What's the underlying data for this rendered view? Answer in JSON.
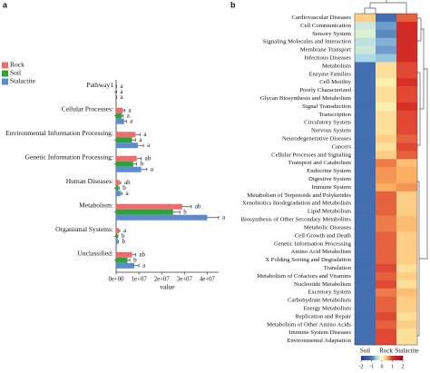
{
  "chart_data": [
    {
      "type": "bar",
      "orientation": "horizontal",
      "panel_label": "a",
      "categories": [
        "Pathway1",
        "Cellular Processes:",
        "Environmental Information Processing:",
        "Genetic Information Processing:",
        "Human Diseases:",
        "Metabolism:",
        "Organismal Systems:",
        "Unclassified:"
      ],
      "series": [
        {
          "name": "Rock",
          "color": "#f26b6b",
          "values": [
            100000,
            3000000,
            8500000,
            9000000,
            1500000,
            29000000,
            1200000,
            7000000
          ],
          "errors": [
            100000,
            800000,
            2000000,
            2000000,
            500000,
            4000000,
            400000,
            1500000
          ],
          "significance_letters": [
            "a",
            "a",
            "a",
            "ab",
            "ab",
            "ab",
            "a",
            "ab"
          ]
        },
        {
          "name": "Soil",
          "color": "#2ca33a",
          "values": [
            80000,
            2500000,
            7000000,
            7500000,
            1000000,
            25000000,
            600000,
            5000000
          ],
          "errors": [
            80000,
            600000,
            1500000,
            1500000,
            300000,
            3000000,
            200000,
            1000000
          ],
          "significance_letters": [
            "a",
            "a",
            "a",
            "b",
            "b",
            "b",
            "b",
            "b"
          ]
        },
        {
          "name": "Stalactite",
          "color": "#5b8bd0",
          "values": [
            120000,
            3500000,
            9500000,
            11000000,
            2000000,
            40000000,
            700000,
            8000000
          ],
          "errors": [
            120000,
            1000000,
            2500000,
            2500000,
            600000,
            5000000,
            300000,
            2000000
          ],
          "significance_letters": [
            "a",
            "a",
            "a",
            "a",
            "a",
            "a",
            "b",
            "a"
          ]
        }
      ],
      "xlabel": "value",
      "xlim": [
        0,
        45000000
      ],
      "xticks": [
        {
          "value": 0,
          "label": "0e+00"
        },
        {
          "value": 10000000,
          "label": "1e+07"
        },
        {
          "value": 20000000,
          "label": "2e+07"
        },
        {
          "value": 30000000,
          "label": "3e+07"
        },
        {
          "value": 40000000,
          "label": "4e+07"
        }
      ],
      "legend": "top-left"
    },
    {
      "type": "heatmap",
      "panel_label": "b",
      "columns": [
        "Soil",
        "Rock",
        "Stalactite"
      ],
      "rows": [
        "Cardiovascular Diseases",
        "Cell Communication",
        "Sensory System",
        "Signaling Molecules and Interaction",
        "Membrane Transport",
        "Infectious Diseases",
        "Metabolism",
        "Enzyme Families",
        "Cell Motility",
        "Poorly Characterized",
        "Glycan Biosynthesis and Metabolism",
        "Signal Transduction",
        "Transcription",
        "Circulatory System",
        "Nervous System",
        "Neurodegenerative Diseases",
        "Cancers",
        "Cellular Processes and Signaling",
        "Transport and Catabolism",
        "Endocrine System",
        "Digestive System",
        "Immune System",
        "Metabolism of Terpenoids and Polyketides",
        "Xenobiotics Biodegradation and Metabolism",
        "Lipid Metabolism",
        "Biosynthesis of Other Secondary Metabolites",
        "Metabolic Diseases",
        "Cell Growth and Death",
        "Genetic Information Processing",
        "Amino Acid Metabolism",
        "X Folding Sorting and Degradation",
        "Translation",
        "Metabolism of Cofactors and Vitamins",
        "Nucleotide Metabolism",
        "Excretory System",
        "Carbohydrate Metabolism",
        "Energy Metabolism",
        "Replication and Repair",
        "Metabolism of Other Amino Acids",
        "Immune System Diseases",
        "Environmental Adaptation"
      ],
      "values": [
        [
          0.3,
          -1.1,
          0.8
        ],
        [
          -0.3,
          -0.8,
          1.1
        ],
        [
          -0.2,
          -0.9,
          1.1
        ],
        [
          -0.4,
          -0.7,
          1.1
        ],
        [
          -0.3,
          -0.8,
          1.1
        ],
        [
          -0.5,
          -0.6,
          1.1
        ],
        [
          -1.1,
          0.2,
          0.9
        ],
        [
          -1.1,
          0.2,
          0.9
        ],
        [
          -1.1,
          0.1,
          1.0
        ],
        [
          -1.1,
          0.2,
          0.9
        ],
        [
          -1.1,
          0.2,
          0.9
        ],
        [
          -1.1,
          0.1,
          1.0
        ],
        [
          -1.1,
          0.2,
          0.9
        ],
        [
          -1.1,
          0.2,
          0.9
        ],
        [
          -1.1,
          0.2,
          0.9
        ],
        [
          -1.1,
          0.3,
          0.8
        ],
        [
          -1.1,
          0.2,
          0.9
        ],
        [
          -1.1,
          0.3,
          0.8
        ],
        [
          -1.1,
          0.7,
          0.4
        ],
        [
          -1.1,
          0.6,
          0.5
        ],
        [
          -1.1,
          0.6,
          0.5
        ],
        [
          -1.1,
          0.5,
          0.6
        ],
        [
          -1.1,
          0.8,
          0.3
        ],
        [
          -1.1,
          0.8,
          0.3
        ],
        [
          -1.1,
          0.8,
          0.3
        ],
        [
          -1.1,
          0.7,
          0.4
        ],
        [
          -1.1,
          0.7,
          0.4
        ],
        [
          -1.1,
          0.8,
          0.3
        ],
        [
          -1.1,
          0.8,
          0.3
        ],
        [
          -1.1,
          0.8,
          0.3
        ],
        [
          -1.1,
          0.8,
          0.3
        ],
        [
          -1.1,
          0.9,
          0.2
        ],
        [
          -1.1,
          0.8,
          0.3
        ],
        [
          -1.1,
          0.9,
          0.2
        ],
        [
          -1.1,
          0.7,
          0.4
        ],
        [
          -1.1,
          0.8,
          0.3
        ],
        [
          -1.1,
          0.8,
          0.3
        ],
        [
          -1.1,
          0.9,
          0.2
        ],
        [
          -1.1,
          0.8,
          0.3
        ],
        [
          -1.1,
          0.9,
          0.2
        ],
        [
          -1.1,
          0.9,
          0.2
        ]
      ],
      "clim": [
        -2,
        2
      ],
      "colorbar_ticks": [
        -2,
        -1,
        0,
        1,
        2
      ]
    }
  ]
}
